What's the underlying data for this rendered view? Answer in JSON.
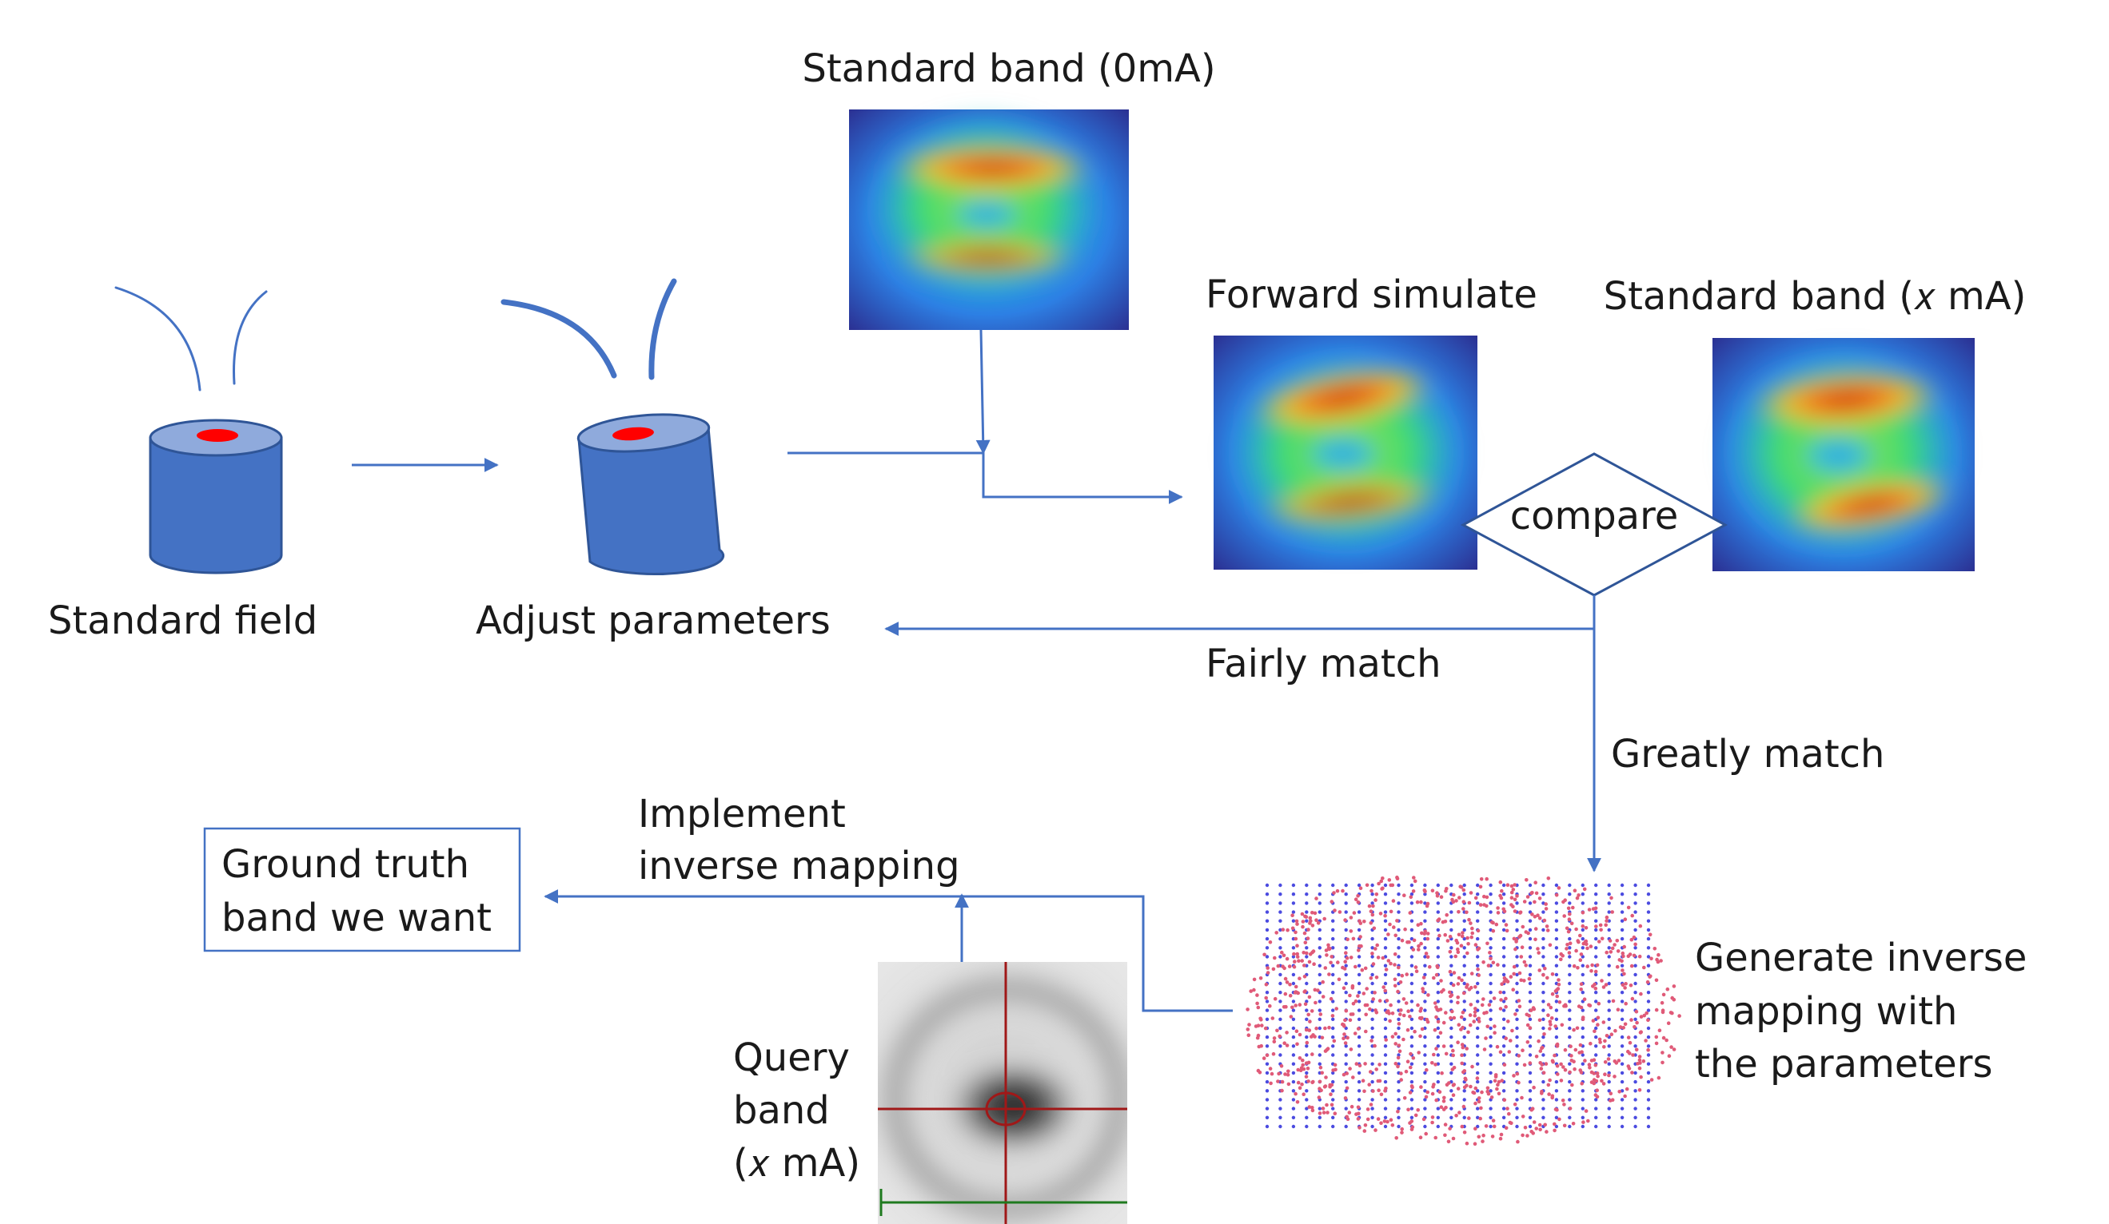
{
  "labels": {
    "standard_field": "Standard field",
    "adjust_parameters": "Adjust parameters",
    "standard_band_0": "Standard band (0mA)",
    "forward_simulate": "Forward simulate",
    "standard_band_x": "Standard band (𝑥  mA)",
    "compare": "compare",
    "fairly_match": "Fairly match",
    "greatly_match": "Greatly match",
    "implement_line1": "Implement",
    "implement_line2": "inverse mapping",
    "ground_truth_line1": "Ground truth",
    "ground_truth_line2": "band we want",
    "query_line1": "Query",
    "query_line2": "band",
    "query_line3": "(𝑥 mA)",
    "generate_line1": "Generate inverse",
    "generate_line2": "mapping with",
    "generate_line3": "the parameters"
  },
  "colors": {
    "connector": "#4472C4",
    "cylinder_body": "#4472C4",
    "cylinder_top": "#8FAADC",
    "cylinder_spot": "#FF0000",
    "grid_dots": "#4B4BE0",
    "scatter_dots": "#E05A78",
    "crosshair_red": "#A01818",
    "crosshair_green": "#1F7A1F"
  },
  "icons": {
    "heatmap": "heatmap-image",
    "cylinder": "cylinder-magnet-icon",
    "query": "grayscale-band-image"
  }
}
